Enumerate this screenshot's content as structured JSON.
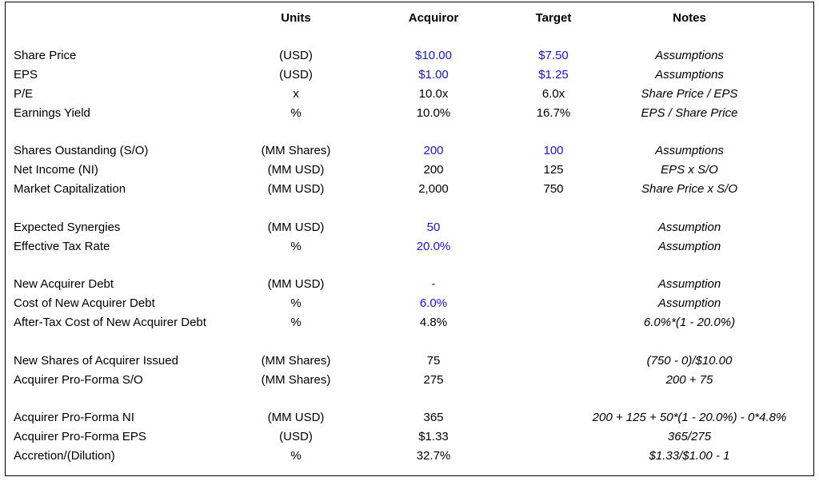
{
  "headers": {
    "units": "Units",
    "acquiror": "Acquiror",
    "target": "Target",
    "notes": "Notes"
  },
  "rows": [
    {
      "label": "Share Price",
      "units": "(USD)",
      "acquiror": "$10.00",
      "target": "$7.50",
      "notes": "Assumptions",
      "acq_input": true,
      "tgt_input": true
    },
    {
      "label": "EPS",
      "units": "(USD)",
      "acquiror": "$1.00",
      "target": "$1.25",
      "notes": "Assumptions",
      "acq_input": true,
      "tgt_input": true
    },
    {
      "label": "P/E",
      "units": "x",
      "acquiror": "10.0x",
      "target": "6.0x",
      "notes": "Share Price / EPS"
    },
    {
      "label": "Earnings Yield",
      "units": "%",
      "acquiror": "10.0%",
      "target": "16.7%",
      "notes": "EPS / Share Price"
    },
    {
      "label": "Shares Oustanding (S/O)",
      "units": "(MM Shares)",
      "acquiror": "200",
      "target": "100",
      "notes": "Assumptions",
      "acq_input": true,
      "tgt_input": true
    },
    {
      "label": "Net Income (NI)",
      "units": "(MM USD)",
      "acquiror": "200",
      "target": "125",
      "notes": "EPS x S/O"
    },
    {
      "label": "Market Capitalization",
      "units": "(MM USD)",
      "acquiror": "2,000",
      "target": "750",
      "notes": "Share Price x S/O"
    },
    {
      "label": "Expected Synergies",
      "units": "(MM USD)",
      "acquiror": "50",
      "target": "",
      "notes": "Assumption",
      "acq_input": true
    },
    {
      "label": "Effective Tax Rate",
      "units": "%",
      "acquiror": "20.0%",
      "target": "",
      "notes": "Assumption",
      "acq_input": true
    },
    {
      "label": "New Acquirer Debt",
      "units": "(MM USD)",
      "acquiror": "-",
      "target": "",
      "notes": "Assumption",
      "acq_input": true
    },
    {
      "label": "Cost of New Acquirer Debt",
      "units": "%",
      "acquiror": "6.0%",
      "target": "",
      "notes": "Assumption",
      "acq_input": true
    },
    {
      "label": "After-Tax Cost of New Acquirer Debt",
      "units": "%",
      "acquiror": "4.8%",
      "target": "",
      "notes": "6.0%*(1 - 20.0%)"
    },
    {
      "label": "New Shares of Acquirer Issued",
      "units": "(MM Shares)",
      "acquiror": "75",
      "target": "",
      "notes": "(750 - 0)/$10.00"
    },
    {
      "label": "Acquirer Pro-Forma S/O",
      "units": "(MM Shares)",
      "acquiror": "275",
      "target": "",
      "notes": "200 + 75"
    },
    {
      "label": "Acquirer Pro-Forma NI",
      "units": "(MM USD)",
      "acquiror": "365",
      "target": "",
      "notes": "200 + 125 + 50*(1 - 20.0%) - 0*4.8%"
    },
    {
      "label": "Acquirer Pro-Forma EPS",
      "units": "(USD)",
      "acquiror": "$1.33",
      "target": "",
      "notes": "365/275"
    },
    {
      "label": "Accretion/(Dilution)",
      "units": "%",
      "acquiror": "32.7%",
      "target": "",
      "notes": "$1.33/$1.00 - 1"
    }
  ]
}
